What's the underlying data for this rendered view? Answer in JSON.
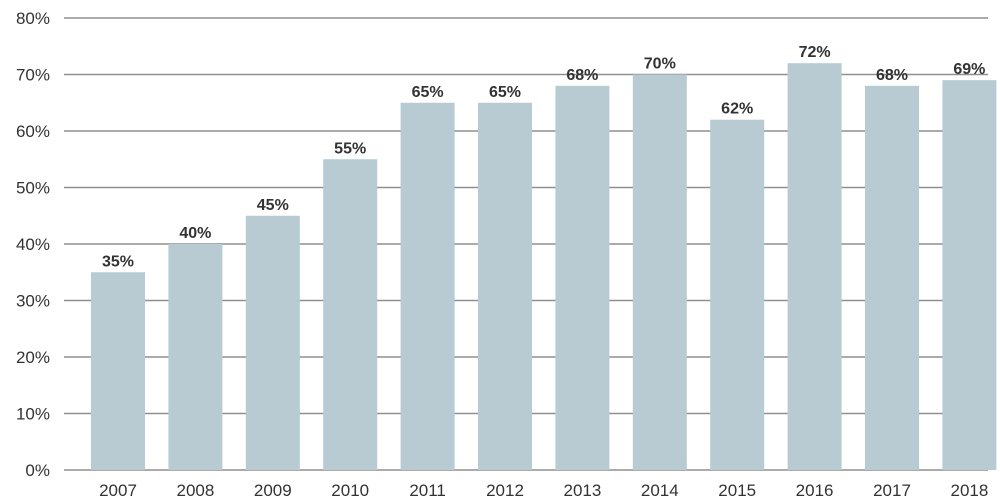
{
  "chart_data": {
    "type": "bar",
    "title": "",
    "xlabel": "",
    "ylabel": "",
    "categories": [
      "2007",
      "2008",
      "2009",
      "2010",
      "2011",
      "2012",
      "2013",
      "2014",
      "2015",
      "2016",
      "2017",
      "2018"
    ],
    "values": [
      35,
      40,
      45,
      55,
      65,
      65,
      68,
      70,
      62,
      72,
      68,
      69
    ],
    "data_labels": [
      "35%",
      "40%",
      "45%",
      "55%",
      "65%",
      "65%",
      "68%",
      "70%",
      "62%",
      "72%",
      "68%",
      "69%"
    ],
    "ylim": [
      0,
      80
    ],
    "y_ticks": [
      0,
      10,
      20,
      30,
      40,
      50,
      60,
      70,
      80
    ],
    "y_tick_labels": [
      "0%",
      "10%",
      "20%",
      "30%",
      "40%",
      "50%",
      "60%",
      "70%",
      "80%"
    ],
    "grid": true,
    "legend": "none",
    "colors": {
      "bar": "#b8cbd3",
      "grid": "#8f8f8f",
      "text": "#333333"
    }
  }
}
